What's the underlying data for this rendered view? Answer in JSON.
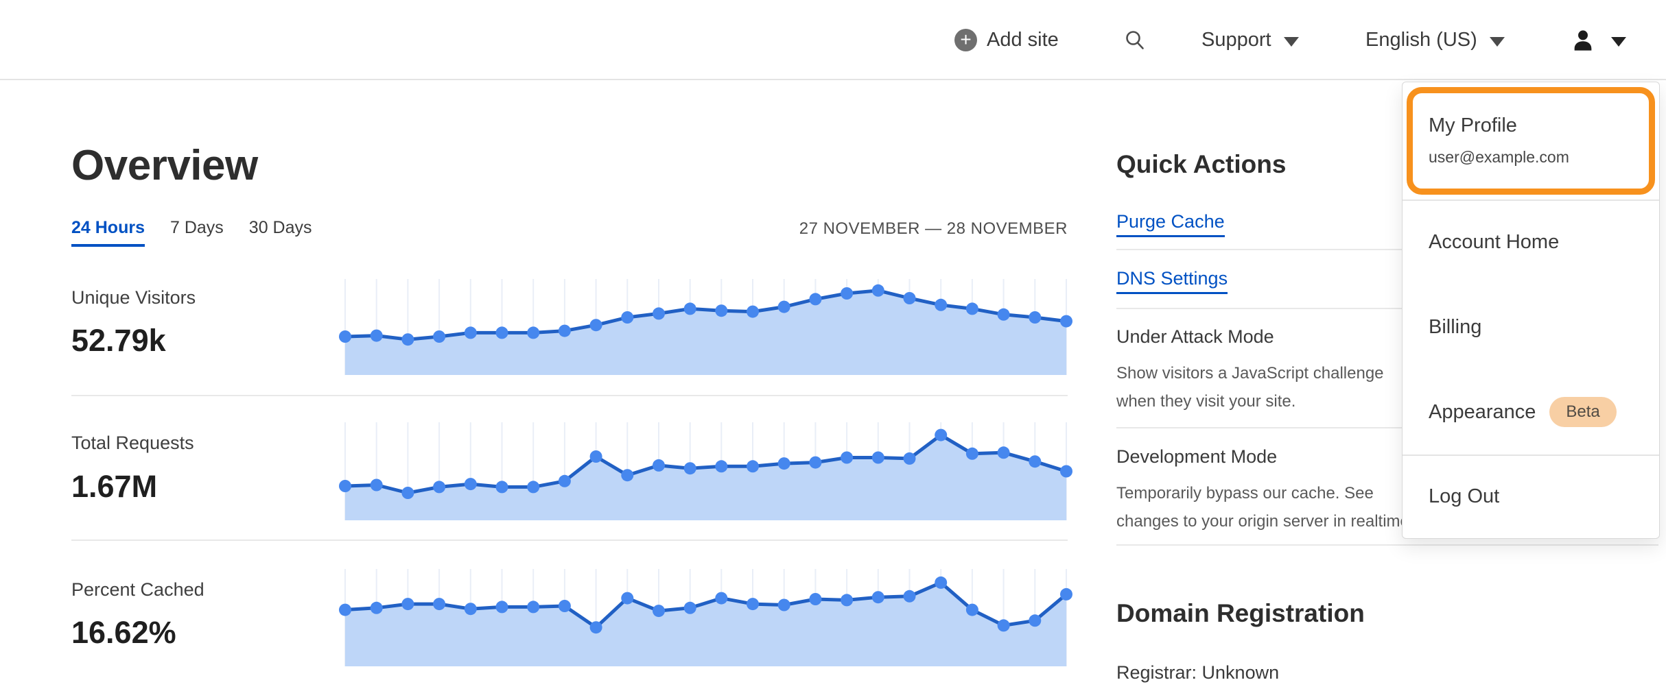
{
  "header": {
    "add_site_label": "Add site",
    "support_label": "Support",
    "language_label": "English (US)"
  },
  "user_menu": {
    "profile": {
      "title": "My Profile",
      "email": "user@example.com"
    },
    "items": [
      {
        "label": "Account Home"
      },
      {
        "label": "Billing"
      },
      {
        "label": "Appearance",
        "badge": "Beta"
      },
      {
        "label": "Log Out"
      }
    ]
  },
  "overview": {
    "title": "Overview",
    "tabs": [
      {
        "label": "24 Hours",
        "active": true
      },
      {
        "label": "7 Days",
        "active": false
      },
      {
        "label": "30 Days",
        "active": false
      }
    ],
    "date_range": "27 NOVEMBER — 28 NOVEMBER"
  },
  "quick_actions": {
    "title": "Quick Actions",
    "links": [
      {
        "label": "Purge Cache"
      },
      {
        "label": "DNS Settings"
      }
    ],
    "toggles": [
      {
        "label": "Under Attack Mode",
        "description_lines": [
          "Show visitors a JavaScript challenge",
          "when they visit your site."
        ]
      },
      {
        "label": "Development Mode",
        "description_lines": [
          "Temporarily bypass our cache. See",
          "changes to your origin server in realtime."
        ]
      }
    ]
  },
  "domain_registration": {
    "title": "Domain Registration",
    "registrar_line": "Registrar: Unknown"
  },
  "chart_data": [
    {
      "type": "area",
      "label": "Unique Visitors",
      "value_display": "52.79k",
      "x_description": "24 hourly points, 27 November — 28 November",
      "ylim": [
        0,
        1
      ],
      "grid": "vertical",
      "values_relative": [
        0.4,
        0.41,
        0.37,
        0.4,
        0.44,
        0.44,
        0.44,
        0.46,
        0.52,
        0.6,
        0.64,
        0.69,
        0.67,
        0.66,
        0.71,
        0.79,
        0.85,
        0.88,
        0.8,
        0.73,
        0.69,
        0.63,
        0.6,
        0.56
      ]
    },
    {
      "type": "area",
      "label": "Total Requests",
      "value_display": "1.67M",
      "x_description": "24 hourly points, 27 November — 28 November",
      "ylim": [
        0,
        1
      ],
      "grid": "vertical",
      "values_relative": [
        0.35,
        0.36,
        0.28,
        0.34,
        0.37,
        0.34,
        0.34,
        0.4,
        0.65,
        0.46,
        0.56,
        0.53,
        0.55,
        0.55,
        0.58,
        0.59,
        0.64,
        0.64,
        0.63,
        0.87,
        0.68,
        0.69,
        0.6,
        0.5
      ]
    },
    {
      "type": "area",
      "label": "Percent Cached",
      "value_display": "16.62%",
      "x_description": "24 hourly points, 27 November — 28 November",
      "ylim": [
        0,
        1
      ],
      "grid": "vertical",
      "values_relative": [
        0.58,
        0.6,
        0.64,
        0.64,
        0.59,
        0.61,
        0.61,
        0.62,
        0.4,
        0.7,
        0.57,
        0.6,
        0.7,
        0.64,
        0.63,
        0.69,
        0.68,
        0.71,
        0.72,
        0.86,
        0.58,
        0.42,
        0.47,
        0.74
      ]
    }
  ],
  "colors": {
    "accent_orange": "#f7911d",
    "link_blue": "#0051c3",
    "chart_line": "#2160c4",
    "chart_dot": "#4687ee",
    "chart_fill": "#bed6f8",
    "chart_grid": "#e9eef7",
    "beta_badge_bg": "#f8cfa4"
  }
}
